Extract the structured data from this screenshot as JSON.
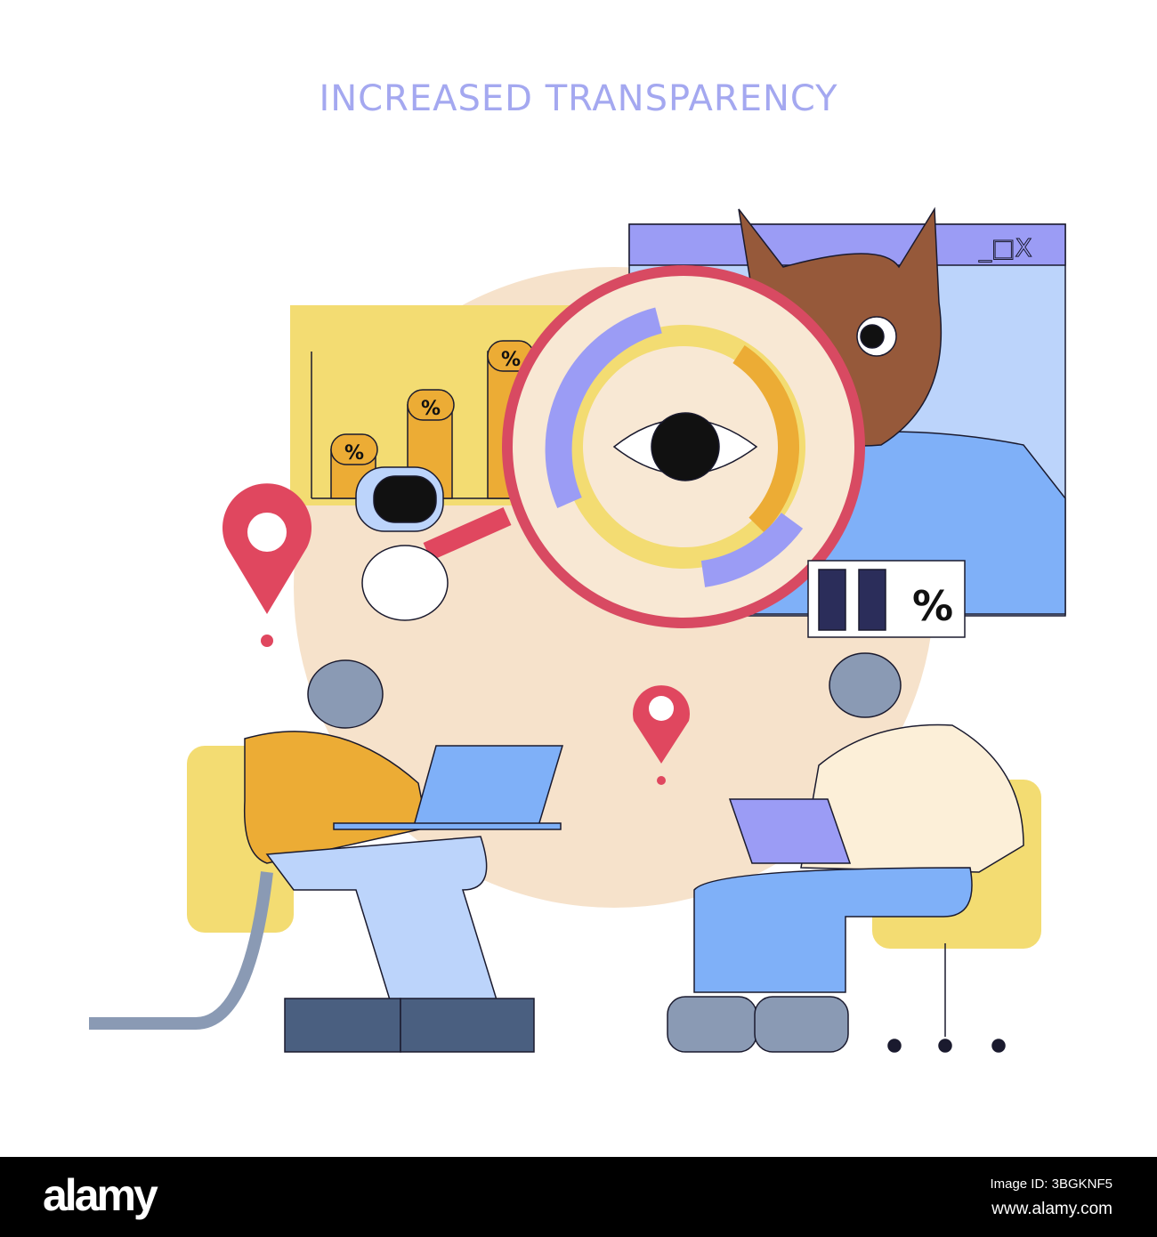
{
  "title": "INCREASED TRANSPARENCY",
  "illustration": {
    "chart_badge_symbol": "%",
    "window_controls": "_□X",
    "colors": {
      "title": "#a4a8f0",
      "yellow": "#f3dc72",
      "orange": "#ecac35",
      "purple": "#9b9cf5",
      "blue": "#7fb0f8",
      "red": "#e0475f",
      "brown": "#96593a",
      "cat_gray": "#8a9ab4",
      "globe": "#f6e2cb"
    }
  },
  "footer": {
    "logo": "alamy",
    "image_id": "Image ID: 3BGKNF5",
    "site": "www.alamy.com"
  }
}
